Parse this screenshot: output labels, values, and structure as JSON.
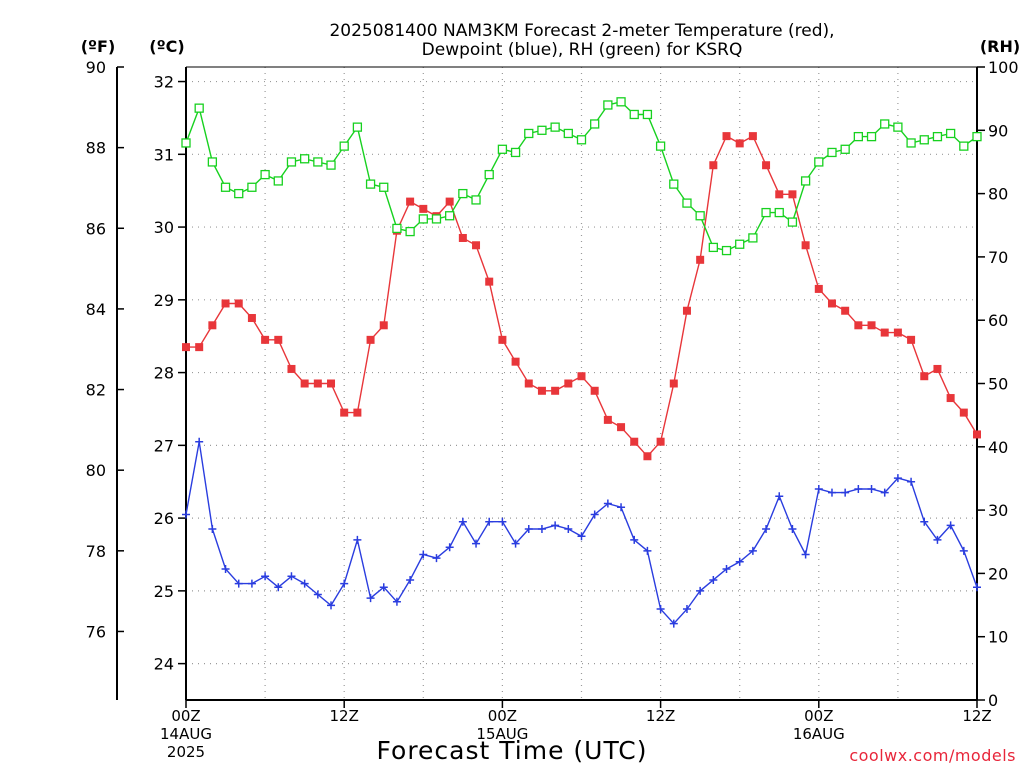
{
  "title": {
    "line1": "2025081400 NAM3KM Forecast 2-meter Temperature (red),",
    "line2": "Dewpoint (blue), RH (green) for KSRQ"
  },
  "axes": {
    "left_outer_unit": "(ºF)",
    "left_inner_unit": "(ºC)",
    "right_unit": "(RH)",
    "xlabel": "Forecast Time (UTC)",
    "credit": "coolwx.com/models"
  },
  "chart_data": {
    "type": "line",
    "title": "2025081400 NAM3KM Forecast 2-meter Temperature (red), Dewpoint (blue), RH (green) for KSRQ",
    "xlabel": "Forecast Time (UTC)",
    "x_unit": "forecast hour from 2025-08-14 00Z",
    "xlim": [
      0,
      60
    ],
    "x_ticks": [
      {
        "hour": 0,
        "lines": [
          "00Z",
          "14AUG",
          "2025"
        ]
      },
      {
        "hour": 12,
        "lines": [
          "12Z"
        ]
      },
      {
        "hour": 24,
        "lines": [
          "00Z",
          "15AUG"
        ]
      },
      {
        "hour": 36,
        "lines": [
          "12Z"
        ]
      },
      {
        "hour": 48,
        "lines": [
          "00Z",
          "16AUG"
        ]
      },
      {
        "hour": 60,
        "lines": [
          "12Z"
        ]
      }
    ],
    "y_left_celsius": {
      "label": "(ºC)",
      "ylim": [
        23.5,
        32.2
      ],
      "ticks": [
        24,
        25,
        26,
        27,
        28,
        29,
        30,
        31,
        32
      ]
    },
    "y_left_fahrenheit": {
      "label": "(ºF)",
      "ylim": [
        74.3,
        90.0
      ],
      "ticks": [
        76,
        78,
        80,
        82,
        84,
        86,
        88,
        90
      ]
    },
    "y_right_rh": {
      "label": "(RH)",
      "ylim": [
        0,
        100
      ],
      "ticks": [
        0,
        10,
        20,
        30,
        40,
        50,
        60,
        70,
        80,
        90,
        100
      ]
    },
    "grid": true,
    "series": [
      {
        "name": "Temperature",
        "axis": "celsius",
        "color": "#e8363a",
        "marker": "filled-square",
        "x": [
          0,
          1,
          2,
          3,
          4,
          5,
          6,
          7,
          8,
          9,
          10,
          11,
          12,
          13,
          14,
          15,
          16,
          17,
          18,
          19,
          20,
          21,
          22,
          23,
          24,
          25,
          26,
          27,
          28,
          29,
          30,
          31,
          32,
          33,
          34,
          35,
          36,
          37,
          38,
          39,
          40,
          41,
          42,
          43,
          44,
          45,
          46,
          47,
          48,
          49,
          50,
          51,
          52,
          53,
          54,
          55,
          56,
          57,
          58,
          59,
          60
        ],
        "values": [
          28.35,
          28.35,
          28.65,
          28.95,
          28.95,
          28.75,
          28.45,
          28.45,
          28.05,
          27.85,
          27.85,
          27.85,
          27.45,
          27.45,
          28.45,
          28.65,
          29.95,
          30.35,
          30.25,
          30.15,
          30.35,
          29.85,
          29.75,
          29.25,
          28.45,
          28.15,
          27.85,
          27.75,
          27.75,
          27.85,
          27.95,
          27.75,
          27.35,
          27.25,
          27.05,
          26.85,
          27.05,
          27.85,
          28.85,
          29.55,
          30.85,
          31.25,
          31.15,
          31.25,
          30.85,
          30.45,
          30.45,
          29.75,
          29.15,
          28.95,
          28.85,
          28.65,
          28.65,
          28.55,
          28.55,
          28.45,
          27.95,
          28.05,
          27.65,
          27.45,
          27.15
        ]
      },
      {
        "name": "Dewpoint",
        "axis": "celsius",
        "color": "#2a3ddf",
        "marker": "plus",
        "x": [
          0,
          1,
          2,
          3,
          4,
          5,
          6,
          7,
          8,
          9,
          10,
          11,
          12,
          13,
          14,
          15,
          16,
          17,
          18,
          19,
          20,
          21,
          22,
          23,
          24,
          25,
          26,
          27,
          28,
          29,
          30,
          31,
          32,
          33,
          34,
          35,
          36,
          37,
          38,
          39,
          40,
          41,
          42,
          43,
          44,
          45,
          46,
          47,
          48,
          49,
          50,
          51,
          52,
          53,
          54,
          55,
          56,
          57,
          58,
          59,
          60
        ],
        "values": [
          26.05,
          27.05,
          25.85,
          25.3,
          25.1,
          25.1,
          25.2,
          25.05,
          25.2,
          25.1,
          24.95,
          24.8,
          25.1,
          25.7,
          24.9,
          25.05,
          24.85,
          25.15,
          25.5,
          25.45,
          25.6,
          25.95,
          25.65,
          25.95,
          25.95,
          25.65,
          25.85,
          25.85,
          25.9,
          25.85,
          25.75,
          26.05,
          26.2,
          26.15,
          25.7,
          25.55,
          24.75,
          24.55,
          24.75,
          25.0,
          25.15,
          25.3,
          25.4,
          25.55,
          25.85,
          26.3,
          25.85,
          25.5,
          26.4,
          26.35,
          26.35,
          26.4,
          26.4,
          26.35,
          26.55,
          26.5,
          25.95,
          25.7,
          25.9,
          25.55,
          25.05
        ]
      },
      {
        "name": "RH",
        "axis": "rh",
        "color": "#17d11f",
        "marker": "open-square",
        "x": [
          0,
          1,
          2,
          3,
          4,
          5,
          6,
          7,
          8,
          9,
          10,
          11,
          12,
          13,
          14,
          15,
          16,
          17,
          18,
          19,
          20,
          21,
          22,
          23,
          24,
          25,
          26,
          27,
          28,
          29,
          30,
          31,
          32,
          33,
          34,
          35,
          36,
          37,
          38,
          39,
          40,
          41,
          42,
          43,
          44,
          45,
          46,
          47,
          48,
          49,
          50,
          51,
          52,
          53,
          54,
          55,
          56,
          57,
          58,
          59,
          60
        ],
        "values": [
          88,
          93.5,
          85,
          81,
          80,
          81,
          83,
          82,
          85,
          85.5,
          85,
          84.5,
          87.5,
          90.5,
          81.5,
          81,
          74.5,
          74,
          76,
          76,
          76.5,
          80,
          79,
          83,
          87,
          86.5,
          89.5,
          90,
          90.5,
          89.5,
          88.5,
          91,
          94,
          94.5,
          92.5,
          92.5,
          87.5,
          81.5,
          78.5,
          76.5,
          71.5,
          71,
          72,
          73,
          77,
          77,
          75.5,
          82,
          85,
          86.5,
          87,
          89,
          89,
          91,
          90.5,
          88,
          88.5,
          89,
          89.5,
          87.5,
          89
        ]
      }
    ]
  }
}
